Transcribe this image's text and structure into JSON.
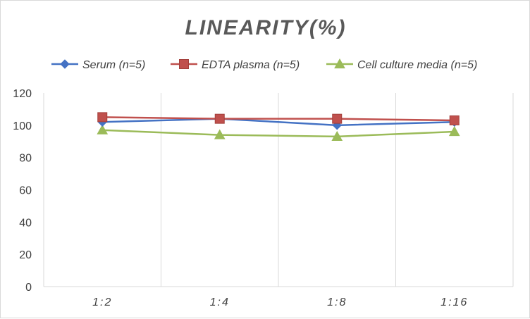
{
  "chart_data": {
    "type": "line",
    "title": "LINEARITY(%)",
    "xlabel": "",
    "ylabel": "",
    "categories": [
      "1:2",
      "1:4",
      "1:8",
      "1:16"
    ],
    "ylim": [
      0,
      120
    ],
    "yticks": [
      0,
      20,
      40,
      60,
      80,
      100,
      120
    ],
    "grid": "vertical",
    "legend_position": "top",
    "series": [
      {
        "name": "Serum (n=5)",
        "values": [
          102,
          104,
          100,
          102
        ],
        "color": "#4472c4",
        "marker": "diamond"
      },
      {
        "name": "EDTA plasma (n=5)",
        "values": [
          105,
          104,
          104,
          103
        ],
        "color": "#c0504d",
        "marker": "square"
      },
      {
        "name": "Cell culture media (n=5)",
        "values": [
          97,
          94,
          93,
          96
        ],
        "color": "#9bbb59",
        "marker": "triangle"
      }
    ]
  }
}
